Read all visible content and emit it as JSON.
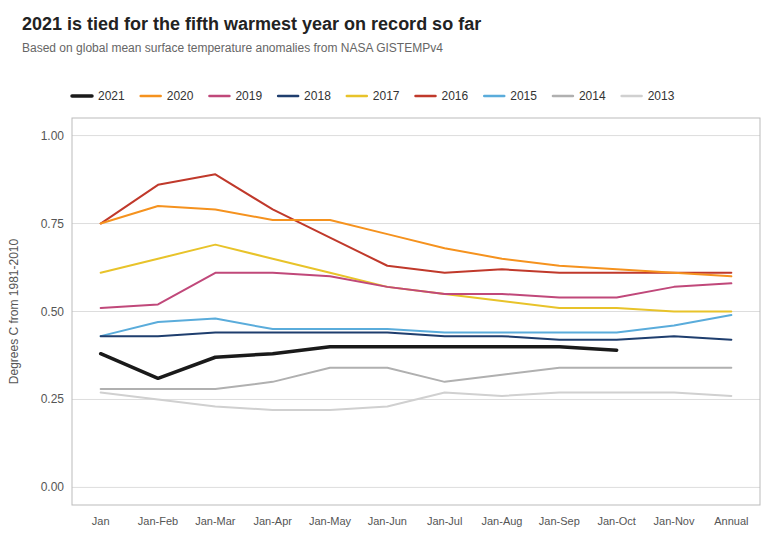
{
  "chart_data": {
    "type": "line",
    "title": "2021 is tied for the fifth warmest year on record so far",
    "subtitle": "Based on global mean surface temperature anomalies from NASA GISTEMPv4",
    "ylabel": "Degrees C from 1981-2010",
    "categories": [
      "Jan",
      "Jan-Feb",
      "Jan-Mar",
      "Jan-Apr",
      "Jan-May",
      "Jan-Jun",
      "Jan-Jul",
      "Jan-Aug",
      "Jan-Sep",
      "Jan-Oct",
      "Jan-Nov",
      "Annual"
    ],
    "series": [
      {
        "name": "2021",
        "color": "#1a1a1a",
        "values": [
          0.38,
          0.31,
          0.37,
          0.38,
          0.4,
          0.4,
          0.4,
          0.4,
          0.4,
          0.39,
          null,
          null
        ]
      },
      {
        "name": "2020",
        "color": "#f5921e",
        "values": [
          0.75,
          0.8,
          0.79,
          0.76,
          0.76,
          0.72,
          0.68,
          0.65,
          0.63,
          0.62,
          0.61,
          0.6
        ]
      },
      {
        "name": "2019",
        "color": "#c0487a",
        "values": [
          0.51,
          0.52,
          0.61,
          0.61,
          0.6,
          0.57,
          0.55,
          0.55,
          0.54,
          0.54,
          0.57,
          0.58
        ]
      },
      {
        "name": "2018",
        "color": "#1f3e6e",
        "values": [
          0.43,
          0.43,
          0.44,
          0.44,
          0.44,
          0.44,
          0.43,
          0.43,
          0.42,
          0.42,
          0.43,
          0.42
        ]
      },
      {
        "name": "2017",
        "color": "#e8c32a",
        "values": [
          0.61,
          0.65,
          0.69,
          0.65,
          0.61,
          0.57,
          0.55,
          0.53,
          0.51,
          0.51,
          0.5,
          0.5
        ]
      },
      {
        "name": "2016",
        "color": "#c0392b",
        "values": [
          0.75,
          0.86,
          0.89,
          0.79,
          0.71,
          0.63,
          0.61,
          0.62,
          0.61,
          0.61,
          0.61,
          0.61
        ]
      },
      {
        "name": "2015",
        "color": "#5aacdb",
        "values": [
          0.43,
          0.47,
          0.48,
          0.45,
          0.45,
          0.45,
          0.44,
          0.44,
          0.44,
          0.44,
          0.46,
          0.49
        ]
      },
      {
        "name": "2014",
        "color": "#b0b0b0",
        "values": [
          0.28,
          0.28,
          0.28,
          0.3,
          0.34,
          0.34,
          0.3,
          0.32,
          0.34,
          0.34,
          0.34,
          0.34
        ]
      },
      {
        "name": "2013",
        "color": "#d0d0d0",
        "values": [
          0.27,
          0.25,
          0.23,
          0.22,
          0.22,
          0.23,
          0.27,
          0.26,
          0.27,
          0.27,
          0.27,
          0.26
        ]
      }
    ],
    "ylim": [
      -0.05,
      1.05
    ],
    "yticks": [
      {
        "value": 0.0,
        "label": "0.00"
      },
      0.25,
      {
        "value": 0.5,
        "label": "0.50"
      },
      0.75,
      {
        "value": 1.0,
        "label": "1.00"
      }
    ],
    "grid": true,
    "legend": "top"
  }
}
